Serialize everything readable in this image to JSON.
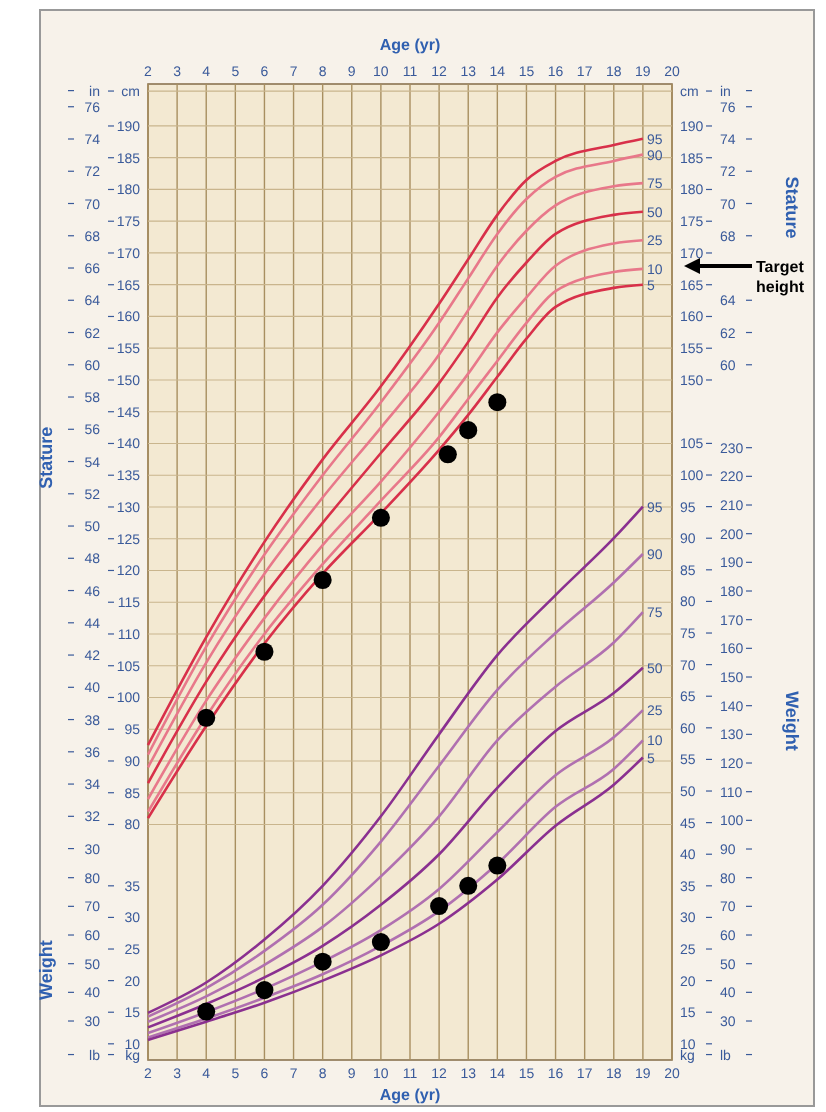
{
  "chart_data": [
    {
      "type": "line",
      "xlabel": "Age (yr)",
      "x2label": "Age (yr)",
      "ylabel": "Stature",
      "y2label": "Stature",
      "x": [
        2,
        4,
        6,
        8,
        10,
        12,
        13,
        14,
        15,
        16,
        18,
        19
      ],
      "xlim": [
        2,
        20
      ],
      "xticks": [
        2,
        3,
        4,
        5,
        6,
        7,
        8,
        9,
        10,
        11,
        12,
        13,
        14,
        15,
        16,
        17,
        18,
        19,
        20
      ],
      "x2lim": [
        2,
        20
      ],
      "x2ticks": [
        2,
        3,
        4,
        5,
        6,
        7,
        8,
        9,
        10,
        11,
        12,
        13,
        14,
        15,
        16,
        17,
        18,
        19,
        20
      ],
      "ylim": [
        42.91,
        196.61
      ],
      "yticks": [
        80,
        85,
        90,
        95,
        100,
        105,
        110,
        115,
        120,
        125,
        130,
        135,
        140,
        145,
        150,
        155,
        160,
        165,
        170,
        175,
        180,
        185,
        190,
        {
          "value": 195.5,
          "label": "cm"
        }
      ],
      "y2lim": [
        42.91,
        196.61
      ],
      "y2ticks": [
        150,
        155,
        160,
        165,
        170,
        175,
        180,
        185,
        190,
        {
          "value": 195.5,
          "label": "cm"
        }
      ],
      "y3lim": [
        16.89,
        77.41
      ],
      "y3ticks": [
        30,
        32,
        34,
        36,
        38,
        40,
        42,
        44,
        46,
        48,
        50,
        52,
        54,
        56,
        58,
        60,
        62,
        64,
        66,
        68,
        70,
        72,
        74,
        76,
        {
          "value": 77,
          "label": "in"
        }
      ],
      "grid": true,
      "marker": "none",
      "line_style": "solid",
      "series": [
        {
          "name": "95",
          "color": "#d8304a",
          "values": [
            92.5,
            109.5,
            124.5,
            137.5,
            149,
            162,
            169,
            176,
            181.5,
            184.5,
            187,
            188
          ]
        },
        {
          "name": "90",
          "color": "#e8788a",
          "values": [
            91,
            108,
            122.5,
            135,
            146.5,
            159,
            166,
            173,
            178.5,
            182,
            184.5,
            185.5
          ]
        },
        {
          "name": "75",
          "color": "#e8788a",
          "values": [
            89,
            105.5,
            119.5,
            131.5,
            142.5,
            154,
            161,
            168,
            173.5,
            177.5,
            180.5,
            181
          ]
        },
        {
          "name": "50",
          "color": "#d8304a",
          "values": [
            86.5,
            102.5,
            116,
            127.5,
            138.5,
            149.5,
            156,
            163,
            168.5,
            173,
            176,
            176.5
          ]
        },
        {
          "name": "25",
          "color": "#e8788a",
          "values": [
            84,
            99.5,
            112.5,
            124,
            134,
            145,
            151,
            157.5,
            163,
            168,
            171.5,
            172
          ]
        },
        {
          "name": "10",
          "color": "#e8788a",
          "values": [
            82,
            97,
            110,
            121,
            131,
            141,
            147,
            153,
            159,
            164,
            167,
            167.5
          ]
        },
        {
          "name": "5",
          "color": "#d8304a",
          "values": [
            81,
            95.5,
            108.5,
            119.5,
            129,
            139,
            144.5,
            150.5,
            156.5,
            161.5,
            164.5,
            165
          ]
        },
        {
          "type": "scatter",
          "marker": "circle",
          "color": "#000000",
          "x": [
            4,
            6,
            8,
            10,
            12.3,
            13,
            14
          ],
          "values": [
            96.8,
            107.2,
            118.5,
            128.3,
            138.3,
            142.1,
            146.5
          ]
        }
      ],
      "annotations": [
        "Target height"
      ]
    },
    {
      "type": "line",
      "ylabel": "Weight",
      "y2label": "Weight",
      "tick_labels": "y",
      "x": [
        2,
        4,
        6,
        8,
        10,
        12,
        14,
        16,
        18,
        19
      ],
      "xlim": [
        2,
        20
      ],
      "ylim": [
        7.44,
        161.87
      ],
      "yticks": [
        {
          "value": 8.3,
          "label": "kg"
        },
        10,
        15,
        20,
        25,
        30,
        35,
        40,
        45,
        50,
        55,
        60,
        65,
        70,
        75,
        80,
        85,
        90,
        95,
        100,
        105
      ],
      "y2lim": [
        7.44,
        161.87
      ],
      "y2ticks": [
        {
          "value": 8.3,
          "label": "kg"
        },
        10,
        15,
        20,
        25,
        30,
        35
      ],
      "y3lim": [
        16.4,
        356.86
      ],
      "y3ticks": [
        {
          "value": 18.3,
          "label": "lb"
        },
        30,
        40,
        50,
        60,
        70,
        80,
        90,
        100,
        110,
        120,
        130,
        140,
        150,
        160,
        170,
        180,
        190,
        200,
        210,
        220,
        230
      ],
      "marker": "none",
      "line_style": "solid",
      "series": [
        {
          "name": "95",
          "color": "#8a3090",
          "values": [
            14.9,
            19.7,
            26.5,
            35,
            46,
            59,
            71.5,
            81,
            90,
            95
          ]
        },
        {
          "name": "90",
          "color": "#b070b0",
          "values": [
            14.3,
            18.8,
            24.7,
            32,
            42,
            54,
            66,
            75,
            83,
            87.5
          ]
        },
        {
          "name": "75",
          "color": "#b070b0",
          "values": [
            13.5,
            17.5,
            22.5,
            28.5,
            36.5,
            46,
            58,
            66.5,
            73.5,
            78.3
          ]
        },
        {
          "name": "50",
          "color": "#8a3090",
          "values": [
            12.6,
            16.3,
            20.5,
            25.5,
            32,
            40,
            50.5,
            59.5,
            65.5,
            69.5
          ]
        },
        {
          "name": "25",
          "color": "#b070b0",
          "values": [
            11.7,
            15,
            18.7,
            23,
            28,
            34.5,
            43.5,
            52.5,
            58.5,
            62.8
          ]
        },
        {
          "name": "10",
          "color": "#b070b0",
          "values": [
            11,
            14,
            17.3,
            21,
            25.5,
            31,
            38.5,
            47.5,
            53.5,
            58
          ]
        },
        {
          "name": "5",
          "color": "#8a3090",
          "values": [
            10.6,
            13.5,
            16.5,
            20,
            24,
            29,
            36,
            44.5,
            51,
            55.3
          ]
        },
        {
          "type": "scatter",
          "marker": "circle",
          "color": "#000000",
          "x": [
            4,
            6,
            8,
            10,
            12,
            13,
            14
          ],
          "values": [
            15.1,
            18.5,
            23,
            26.1,
            31.8,
            35,
            38.2
          ]
        }
      ]
    },
    {
      "type": "line",
      "tick_labels": "y",
      "xlim": [
        2,
        20
      ],
      "ylim": [
        16.89,
        77.41
      ],
      "yticks": [
        60,
        62,
        64,
        68,
        70,
        72,
        74,
        76,
        {
          "value": 77,
          "label": "in"
        }
      ],
      "y2lim": [
        16.4,
        356.86
      ],
      "y2ticks": [
        {
          "value": 18.3,
          "label": "lb"
        },
        30,
        40,
        50,
        60,
        70,
        80
      ]
    }
  ]
}
